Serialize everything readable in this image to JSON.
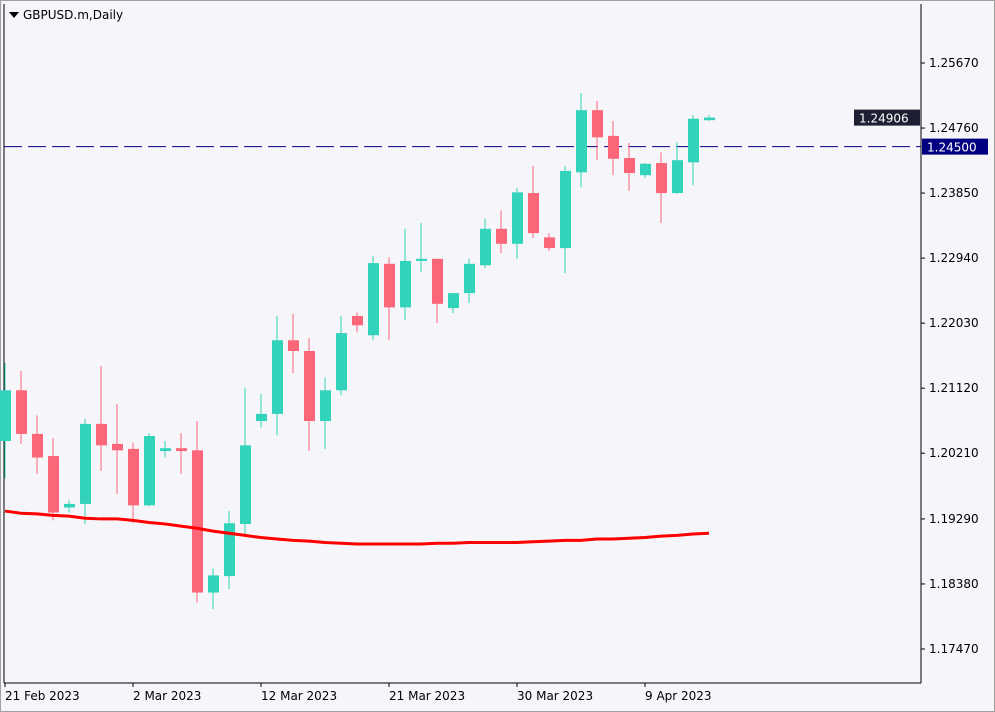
{
  "window": {
    "symbol_title": "GBPUSD.m,Daily"
  },
  "chart_data": {
    "type": "candlestick",
    "title": "GBPUSD.m,Daily",
    "colors": {
      "bull": "#33d2ba",
      "bear": "#fc6679",
      "ma": "#ff0000",
      "level_line": "#000080",
      "background": "#f6f6fa"
    },
    "ylim": [
      1.1747,
      1.2567
    ],
    "y_ticks": [
      "1.25670",
      "1.24760",
      "1.23850",
      "1.22940",
      "1.22030",
      "1.21120",
      "1.20210",
      "1.19290",
      "1.18380",
      "1.17470"
    ],
    "y_tick_values": [
      1.2567,
      1.2476,
      1.2385,
      1.2294,
      1.2203,
      1.2112,
      1.2021,
      1.1929,
      1.1838,
      1.1747
    ],
    "x_labels": [
      {
        "label": "21 Feb 2023",
        "index": 0
      },
      {
        "label": "2 Mar 2023",
        "index": 8
      },
      {
        "label": "12 Mar 2023",
        "index": 16
      },
      {
        "label": "21 Mar 2023",
        "index": 24
      },
      {
        "label": "30 Mar 2023",
        "index": 32
      },
      {
        "label": "9 Apr 2023",
        "index": 40
      }
    ],
    "ohlc": [
      [
        1.2038,
        1.2147,
        1.1986,
        1.2109
      ],
      [
        1.2109,
        1.2136,
        1.2034,
        1.2048
      ],
      [
        1.2048,
        1.2074,
        1.1992,
        1.2015
      ],
      [
        1.2017,
        1.2042,
        1.1927,
        1.1938
      ],
      [
        1.1945,
        1.1955,
        1.1938,
        1.195
      ],
      [
        1.195,
        1.2069,
        1.1922,
        1.2062
      ],
      [
        1.2062,
        1.2143,
        1.1996,
        1.2032
      ],
      [
        1.2034,
        1.209,
        1.1964,
        1.2025
      ],
      [
        1.2027,
        1.2036,
        1.1923,
        1.1948
      ],
      [
        1.1948,
        1.2049,
        1.1947,
        1.2045
      ],
      [
        1.2024,
        1.2038,
        1.2015,
        1.2028
      ],
      [
        1.2028,
        1.2049,
        1.1992,
        1.2024
      ],
      [
        1.2025,
        1.2066,
        1.1812,
        1.1826
      ],
      [
        1.1826,
        1.186,
        1.1803,
        1.185
      ],
      [
        1.1849,
        1.194,
        1.1831,
        1.1923
      ],
      [
        1.1922,
        1.2113,
        1.1906,
        1.2032
      ],
      [
        1.2066,
        1.2104,
        1.2057,
        1.2076
      ],
      [
        1.2076,
        1.2213,
        1.2046,
        1.2179
      ],
      [
        1.2179,
        1.2216,
        1.2133,
        1.2164
      ],
      [
        1.2164,
        1.2182,
        1.2024,
        1.2066
      ],
      [
        1.2066,
        1.2127,
        1.2027,
        1.2109
      ],
      [
        1.2109,
        1.2213,
        1.2102,
        1.2189
      ],
      [
        1.2213,
        1.2218,
        1.219,
        1.22
      ],
      [
        1.2186,
        1.2297,
        1.2179,
        1.2287
      ],
      [
        1.2286,
        1.2295,
        1.2179,
        1.2225
      ],
      [
        1.2225,
        1.2335,
        1.2207,
        1.229
      ],
      [
        1.229,
        1.2343,
        1.2274,
        1.2293
      ],
      [
        1.2293,
        1.2293,
        1.2203,
        1.223
      ],
      [
        1.2224,
        1.2245,
        1.2217,
        1.2245
      ],
      [
        1.2245,
        1.2293,
        1.2231,
        1.2286
      ],
      [
        1.2284,
        1.2349,
        1.228,
        1.2335
      ],
      [
        1.2335,
        1.2361,
        1.2301,
        1.2314
      ],
      [
        1.2314,
        1.2392,
        1.2293,
        1.2386
      ],
      [
        1.2385,
        1.2423,
        1.2322,
        1.2329
      ],
      [
        1.2323,
        1.2329,
        1.2304,
        1.2308
      ],
      [
        1.2308,
        1.2423,
        1.2273,
        1.2416
      ],
      [
        1.2414,
        1.2525,
        1.2393,
        1.2501
      ],
      [
        1.2501,
        1.2514,
        1.2431,
        1.2463
      ],
      [
        1.2465,
        1.2486,
        1.241,
        1.2433
      ],
      [
        1.2434,
        1.2455,
        1.2388,
        1.2413
      ],
      [
        1.241,
        1.2427,
        1.2406,
        1.2426
      ],
      [
        1.2427,
        1.2442,
        1.2343,
        1.2385
      ],
      [
        1.2385,
        1.2456,
        1.2384,
        1.2431
      ],
      [
        1.2428,
        1.2494,
        1.2396,
        1.2489
      ],
      [
        1.2487,
        1.2494,
        1.2486,
        1.24906
      ]
    ],
    "moving_average": [
      1.194,
      1.1937,
      1.1936,
      1.1934,
      1.1933,
      1.193,
      1.1929,
      1.1929,
      1.1927,
      1.1924,
      1.1922,
      1.1919,
      1.1916,
      1.1912,
      1.1909,
      1.1906,
      1.1903,
      1.1901,
      1.1899,
      1.1898,
      1.1896,
      1.1895,
      1.1894,
      1.1894,
      1.1894,
      1.1894,
      1.1894,
      1.1895,
      1.1895,
      1.1896,
      1.1896,
      1.1896,
      1.1896,
      1.1897,
      1.1898,
      1.1899,
      1.1899,
      1.1901,
      1.1901,
      1.1902,
      1.1903,
      1.1905,
      1.1906,
      1.1908,
      1.1909
    ],
    "current_price": {
      "value": 1.24906,
      "label": "1.24906"
    },
    "level_line": {
      "value": 1.245,
      "label": "1.24500",
      "style": "dashed"
    }
  }
}
